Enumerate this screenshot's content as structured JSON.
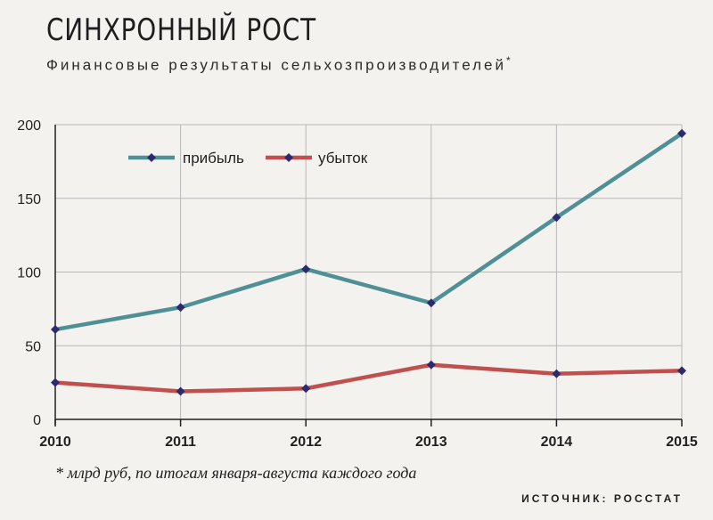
{
  "title": "СИНХРОННЫЙ РОСТ",
  "subtitle": "Финансовые результаты сельхозпроизводителей",
  "subtitle_mark": "*",
  "footnote": "* млрд руб, по итогам января-августа каждого года",
  "source": "ИСТОЧНИК: РОССТАТ",
  "colors": {
    "profit": "#4f8f96",
    "loss": "#c0504d",
    "marker": "#2b2a6e",
    "grid": "#b8b8b8",
    "axis": "#231f20"
  },
  "chart_data": {
    "type": "line",
    "x": [
      "2010",
      "2011",
      "2012",
      "2013",
      "2014",
      "2015"
    ],
    "ylim": [
      0,
      200
    ],
    "yticks": [
      0,
      50,
      100,
      150,
      200
    ],
    "grid": true,
    "legend_position": "top-left",
    "series": [
      {
        "name": "прибыль",
        "color_key": "profit",
        "values": [
          61,
          76,
          102,
          79,
          137,
          194
        ]
      },
      {
        "name": "убыток",
        "color_key": "loss",
        "values": [
          25,
          19,
          21,
          37,
          31,
          33
        ]
      }
    ]
  }
}
